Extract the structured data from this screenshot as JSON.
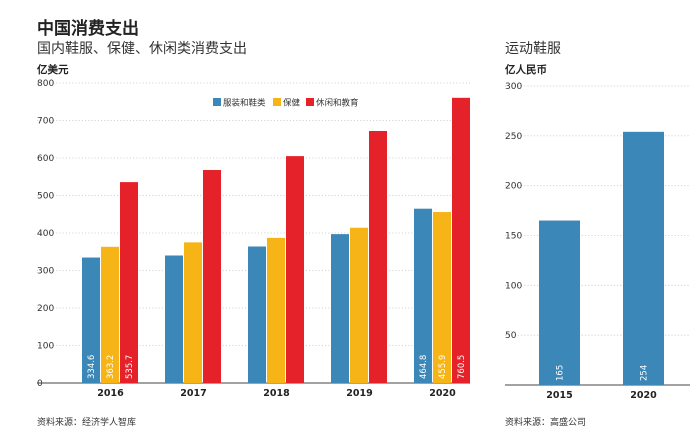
{
  "header": {
    "title": "中国消费支出"
  },
  "left_panel": {
    "subtitle": "国内鞋服、保健、休闲类消费支出",
    "unit": "亿美元",
    "source": "资料来源：经济学人智库"
  },
  "right_panel": {
    "subtitle": "运动鞋服",
    "unit": "亿人民币",
    "source": "资料来源：高盛公司"
  },
  "chart_data": [
    {
      "type": "bar",
      "title": "国内鞋服、保健、休闲类消费支出",
      "ylabel": "亿美元",
      "categories": [
        "2016",
        "2017",
        "2018",
        "2019",
        "2020"
      ],
      "ylim": [
        0,
        800
      ],
      "yticks": [
        0,
        100,
        200,
        300,
        400,
        500,
        600,
        700,
        800
      ],
      "legend_position": "top-right",
      "grid": true,
      "series": [
        {
          "name": "服装和鞋类",
          "color": "#3a87b8",
          "values": [
            334.6,
            340,
            364,
            397,
            464.8
          ],
          "labels": [
            "334.6",
            null,
            null,
            null,
            "464.8"
          ]
        },
        {
          "name": "保健",
          "color": "#f6b417",
          "values": [
            363.2,
            375,
            387,
            414,
            455.9
          ],
          "labels": [
            "363.2",
            null,
            null,
            null,
            "455.9"
          ]
        },
        {
          "name": "休闲和教育",
          "color": "#e52129",
          "values": [
            535.7,
            568,
            605,
            672,
            760.5
          ],
          "labels": [
            "535.7",
            null,
            null,
            null,
            "760.5"
          ]
        }
      ]
    },
    {
      "type": "bar",
      "title": "运动鞋服",
      "ylabel": "亿人民币",
      "categories": [
        "2015",
        "2020"
      ],
      "ylim": [
        0,
        300
      ],
      "yticks": [
        50,
        100,
        150,
        200,
        250,
        300
      ],
      "grid": true,
      "series": [
        {
          "color": "#3a87b8",
          "values": [
            165,
            254
          ],
          "labels": [
            "165",
            "254"
          ]
        }
      ]
    }
  ]
}
